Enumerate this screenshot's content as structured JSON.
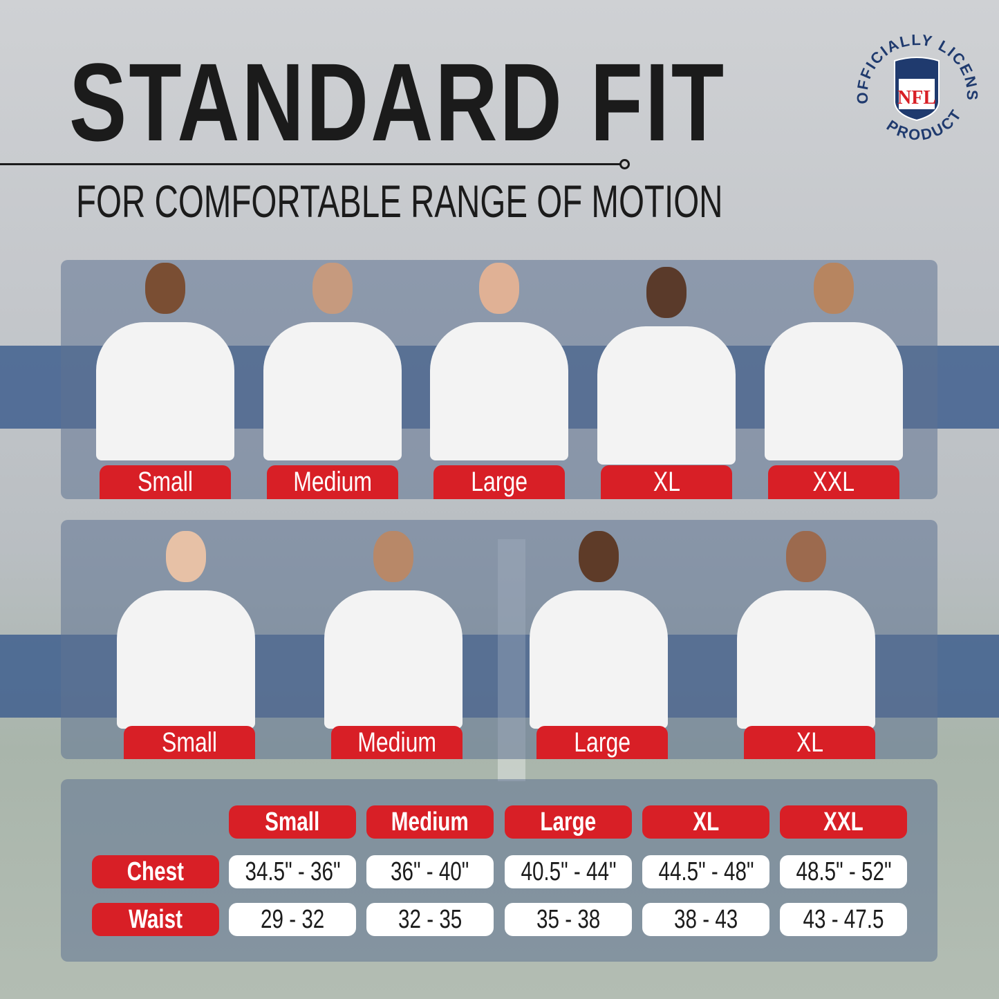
{
  "header": {
    "title": "STANDARD FIT",
    "subtitle": "FOR COMFORTABLE RANGE OF MOTION"
  },
  "seal": {
    "text_top": "OFFICIALLY LICENSED",
    "text_bottom": "PRODUCT",
    "logo": "NFL",
    "colors": {
      "navy": "#1f3a6e",
      "red": "#d81f26"
    }
  },
  "men": {
    "sizes": [
      "Small",
      "Medium",
      "Large",
      "XL",
      "XXL"
    ]
  },
  "women": {
    "sizes": [
      "Small",
      "Medium",
      "Large",
      "XL"
    ]
  },
  "table": {
    "columns": [
      "Small",
      "Medium",
      "Large",
      "XL",
      "XXL"
    ],
    "rows": [
      {
        "label": "Chest",
        "values": [
          "34.5\" - 36\"",
          "36\" - 40\"",
          "40.5\" - 44\"",
          "44.5\" - 48\"",
          "48.5\" - 52\""
        ]
      },
      {
        "label": "Waist",
        "values": [
          "29 - 32",
          "32 - 35",
          "35 - 38",
          "38 - 43",
          "43 - 47.5"
        ]
      }
    ]
  },
  "colors": {
    "accent": "#d81f26",
    "stripe": "#3f5f8e",
    "panel": "#5f7391"
  }
}
